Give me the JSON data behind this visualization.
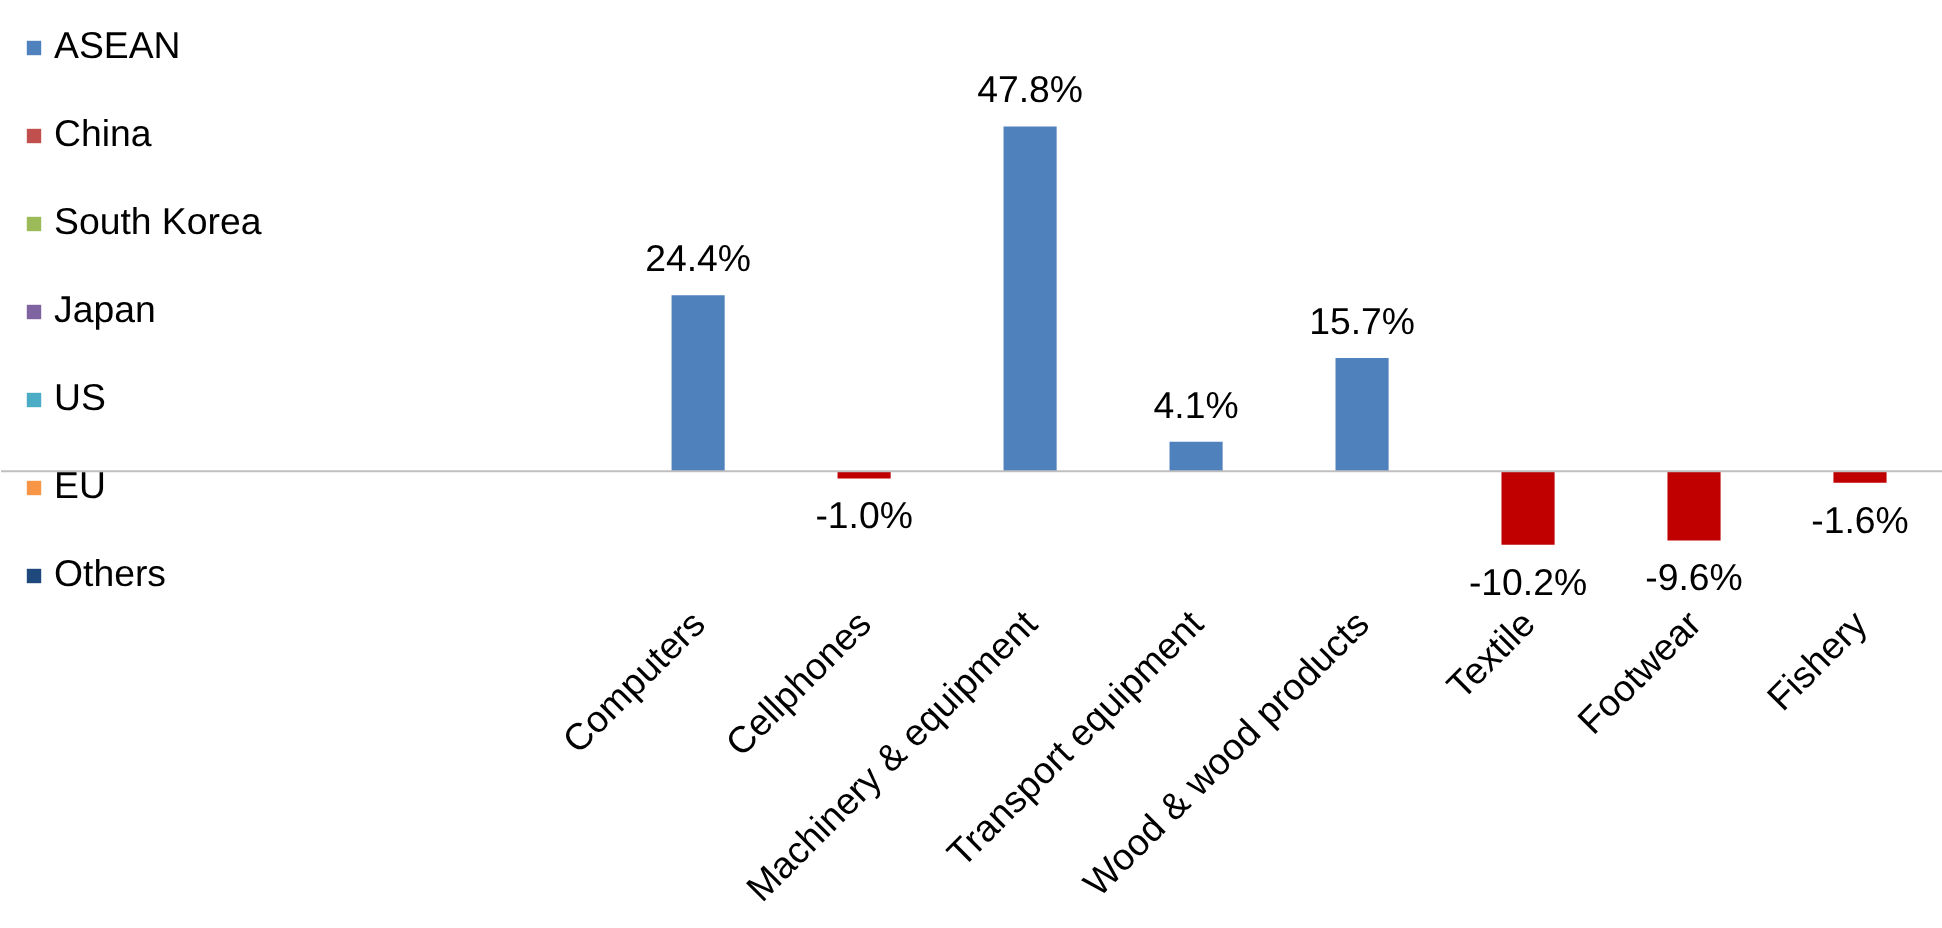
{
  "chart_data": {
    "type": "bar",
    "categories": [
      "Computers",
      "Cellphones",
      "Machinery & equipment",
      "Transport equipment",
      "Wood & wood products",
      "Textile",
      "Footwear",
      "Fishery"
    ],
    "series": [
      {
        "name": "ASEAN",
        "color": "#4f81bd",
        "colors": [
          "#4f81bd",
          "#c00000",
          "#4f81bd",
          "#4f81bd",
          "#4f81bd",
          "#c00000",
          "#c00000",
          "#c00000"
        ],
        "values": [
          24.4,
          -1.0,
          47.8,
          4.1,
          15.7,
          -10.2,
          -9.6,
          -1.6
        ],
        "value_labels": [
          "24.4%",
          "-1.0%",
          "47.8%",
          "4.1%",
          "15.7%",
          "-10.2%",
          "-9.6%",
          "-1.6%"
        ]
      },
      {
        "name": "China",
        "color": "#c0504d",
        "values": [
          null,
          null,
          null,
          null,
          null,
          null,
          null,
          null
        ]
      },
      {
        "name": "South Korea",
        "color": "#9bbb59",
        "values": [
          null,
          null,
          null,
          null,
          null,
          null,
          null,
          null
        ]
      },
      {
        "name": "Japan",
        "color": "#8064a2",
        "values": [
          null,
          null,
          null,
          null,
          null,
          null,
          null,
          null
        ]
      },
      {
        "name": "US",
        "color": "#4bacc6",
        "values": [
          null,
          null,
          null,
          null,
          null,
          null,
          null,
          null
        ]
      },
      {
        "name": "EU",
        "color": "#f79646",
        "values": [
          null,
          null,
          null,
          null,
          null,
          null,
          null,
          null
        ]
      },
      {
        "name": "Others",
        "color": "#1f497d",
        "values": [
          null,
          null,
          null,
          null,
          null,
          null,
          null,
          null
        ]
      }
    ],
    "legend": "left",
    "grid": false
  }
}
